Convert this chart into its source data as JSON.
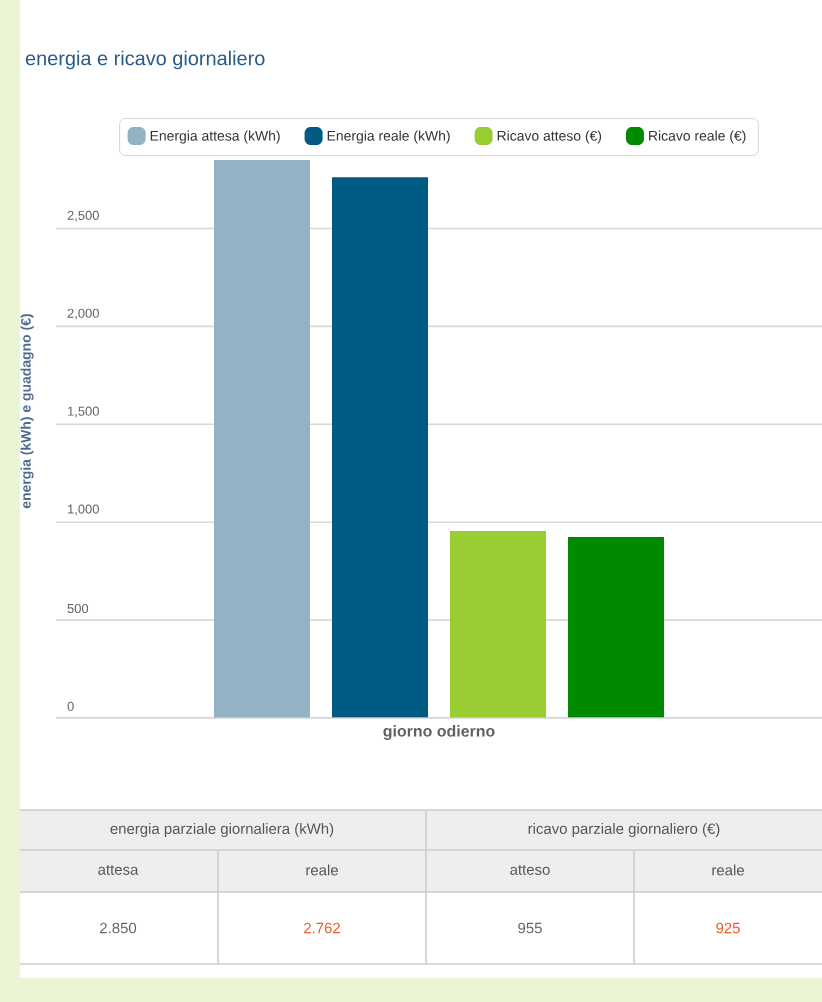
{
  "chart_data": {
    "type": "bar",
    "title": "energia e ricavo giornaliero",
    "ylabel": "energia (kWh) e guadagno (€)",
    "categories": [
      "giorno odierno"
    ],
    "series": [
      {
        "name": "Energia attesa (kWh)",
        "color": "#93b3c4",
        "values": [
          2850
        ]
      },
      {
        "name": "Energia reale (kWh)",
        "color": "#005a84",
        "values": [
          2762
        ]
      },
      {
        "name": "Ricavo atteso (€)",
        "color": "#9acd32",
        "values": [
          955
        ]
      },
      {
        "name": "Ricavo reale (€)",
        "color": "#008a00",
        "values": [
          925
        ]
      }
    ],
    "ylim": [
      0,
      2850
    ],
    "yticks": [
      0,
      {
        "value": 500,
        "label": "500"
      },
      {
        "value": 1000,
        "label": "1,000"
      },
      {
        "value": 1500,
        "label": "1,500"
      },
      {
        "value": 2000,
        "label": "2,000"
      },
      {
        "value": 2500,
        "label": "2,500"
      }
    ],
    "grid": "y",
    "legend": "top",
    "annotations": [
      "energia parziale giornaliera (kWh)",
      "ricavo parziale giornaliero (€)",
      "attesa",
      "reale",
      "atteso",
      "reale",
      "2.850",
      "2.762",
      "955",
      "925"
    ]
  }
}
